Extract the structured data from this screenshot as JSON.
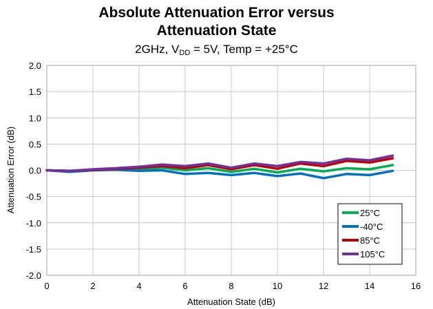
{
  "chart_data": {
    "type": "line",
    "title_line1": "Absolute Attenuation Error versus",
    "title_line2": "Attenuation State",
    "subtitle": {
      "prefix": "2GHz, V",
      "sub": "DD",
      "suffix": " = 5V, Temp = +25°C"
    },
    "xlabel": "Attenuation State (dB)",
    "ylabel": "Attenuation Error (dB)",
    "xlim": [
      0,
      16
    ],
    "ylim": [
      -2.0,
      2.0
    ],
    "xticks": [
      "0",
      "2",
      "4",
      "6",
      "8",
      "10",
      "12",
      "14",
      "16"
    ],
    "yticks": [
      "2.0",
      "1.5",
      "1.0",
      "0.5",
      "0.0",
      "-0.5",
      "-1.0",
      "-1.5",
      "-2.0"
    ],
    "grid": true,
    "legend_position": "bottom-right",
    "x": [
      0,
      1,
      2,
      3,
      4,
      5,
      6,
      7,
      8,
      9,
      10,
      11,
      12,
      13,
      14,
      15
    ],
    "series": [
      {
        "name": "25°C",
        "color": "#00b050",
        "values": [
          0.0,
          -0.01,
          0.01,
          0.02,
          0.02,
          0.05,
          0.0,
          0.04,
          -0.03,
          0.03,
          -0.04,
          0.03,
          -0.02,
          0.04,
          0.02,
          0.1
        ]
      },
      {
        "name": "-40°C",
        "color": "#0070c0",
        "values": [
          0.0,
          -0.03,
          0.0,
          0.01,
          -0.01,
          0.0,
          -0.07,
          -0.05,
          -0.09,
          -0.05,
          -0.11,
          -0.06,
          -0.15,
          -0.07,
          -0.09,
          -0.01
        ]
      },
      {
        "name": "85°C",
        "color": "#c00000",
        "values": [
          0.0,
          -0.01,
          0.01,
          0.03,
          0.05,
          0.08,
          0.04,
          0.1,
          0.02,
          0.1,
          0.03,
          0.13,
          0.08,
          0.18,
          0.15,
          0.23
        ]
      },
      {
        "name": "105°C",
        "color": "#7030a0",
        "values": [
          0.0,
          -0.01,
          0.02,
          0.04,
          0.07,
          0.11,
          0.08,
          0.13,
          0.05,
          0.13,
          0.08,
          0.16,
          0.13,
          0.22,
          0.19,
          0.28
        ]
      }
    ]
  }
}
